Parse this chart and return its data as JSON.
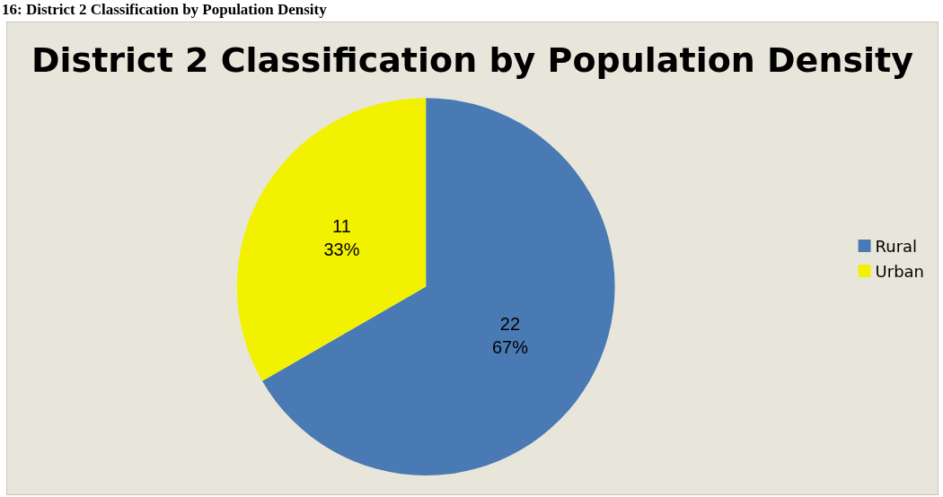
{
  "chart_data": {
    "type": "pie",
    "title": "District 2 Classification by Population Density",
    "annotations": [
      "16: District 2 Classification by Population Density"
    ],
    "categories": [
      "Rural",
      "Urban"
    ],
    "values": [
      22,
      11
    ],
    "colors": [
      "#4a7ab4",
      "#f2f200"
    ],
    "value_labels": [
      "22\n67%",
      "11\n33%"
    ],
    "legend": "right"
  }
}
